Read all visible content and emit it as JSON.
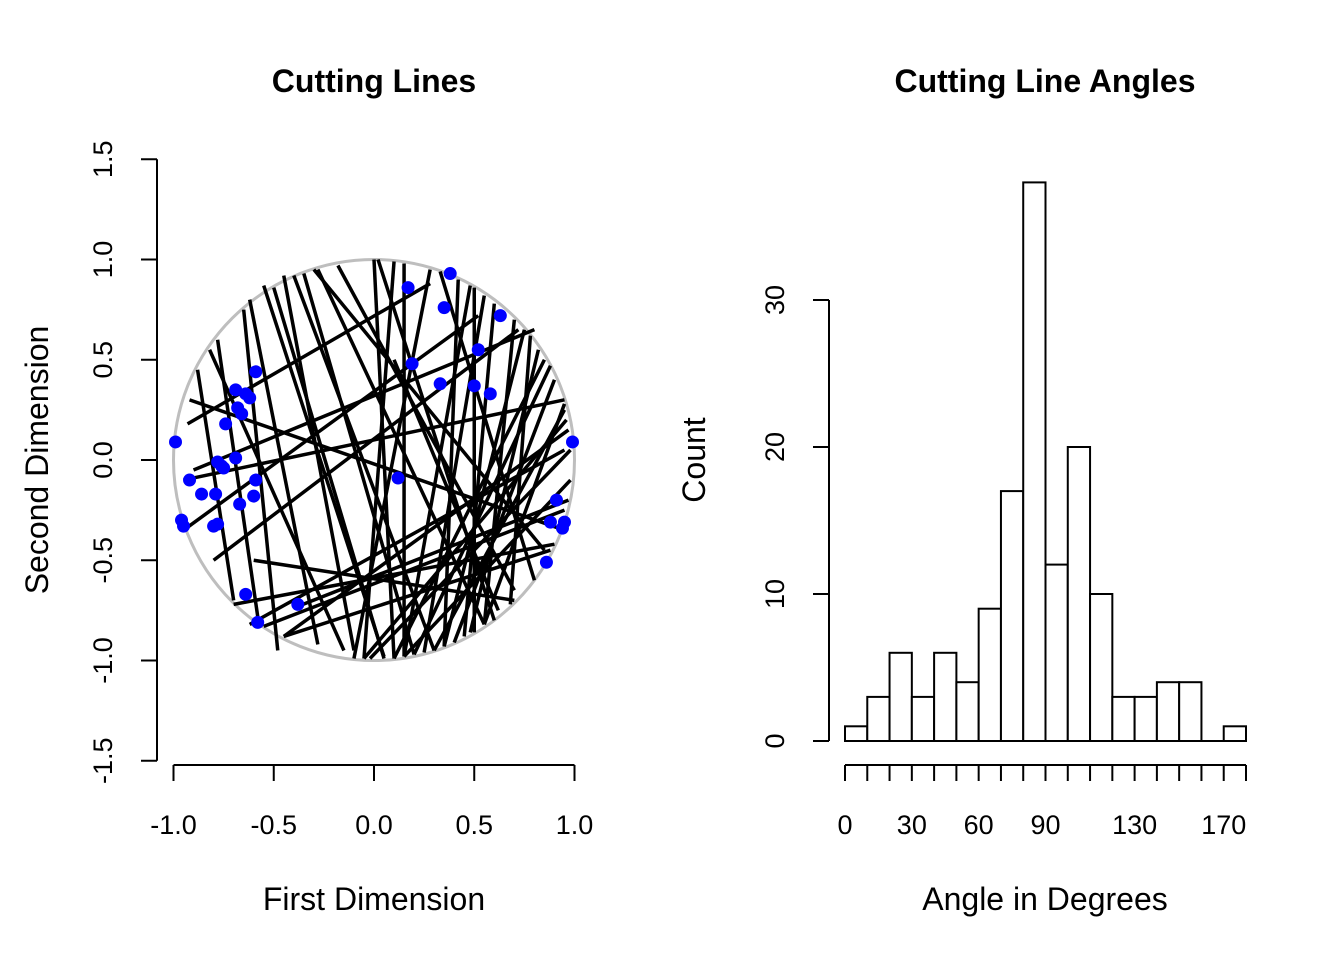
{
  "chart_data": [
    {
      "type": "scatter",
      "title": "Cutting Lines",
      "xlabel": "First Dimension",
      "ylabel": "Second Dimension",
      "xlim": [
        -1.0,
        1.0
      ],
      "ylim": [
        -1.5,
        1.5
      ],
      "xticks": [
        "-1.0",
        "-0.5",
        "0.0",
        "0.5",
        "1.0"
      ],
      "yticks": [
        "-1.5",
        "-1.0",
        "-0.5",
        "0.0",
        "0.5",
        "1.0",
        "1.5"
      ],
      "colors": {
        "points": "#0000ff",
        "lines": "#000000",
        "circle": "#bebebe"
      },
      "unit_circle": {
        "center": [
          0,
          0
        ],
        "radius": 1.0
      },
      "points": [
        [
          -0.99,
          0.09
        ],
        [
          -0.96,
          -0.3
        ],
        [
          -0.95,
          -0.33
        ],
        [
          -0.92,
          -0.1
        ],
        [
          -0.86,
          -0.17
        ],
        [
          -0.8,
          -0.33
        ],
        [
          -0.78,
          -0.32
        ],
        [
          -0.79,
          -0.17
        ],
        [
          -0.78,
          -0.01
        ],
        [
          -0.76,
          -0.03
        ],
        [
          -0.75,
          -0.04
        ],
        [
          -0.74,
          0.18
        ],
        [
          -0.69,
          0.01
        ],
        [
          -0.69,
          0.35
        ],
        [
          -0.68,
          0.26
        ],
        [
          -0.66,
          0.23
        ],
        [
          -0.67,
          -0.22
        ],
        [
          -0.64,
          0.33
        ],
        [
          -0.62,
          0.31
        ],
        [
          -0.64,
          -0.67
        ],
        [
          -0.59,
          0.44
        ],
        [
          -0.58,
          -0.81
        ],
        [
          -0.59,
          -0.1
        ],
        [
          -0.6,
          -0.18
        ],
        [
          -0.38,
          -0.72
        ],
        [
          0.12,
          -0.09
        ],
        [
          0.17,
          0.86
        ],
        [
          0.19,
          0.48
        ],
        [
          0.33,
          0.38
        ],
        [
          0.35,
          0.76
        ],
        [
          0.38,
          0.93
        ],
        [
          0.5,
          0.37
        ],
        [
          0.52,
          0.55
        ],
        [
          0.58,
          0.33
        ],
        [
          0.63,
          0.72
        ],
        [
          0.86,
          -0.51
        ],
        [
          0.88,
          -0.31
        ],
        [
          0.91,
          -0.2
        ],
        [
          0.94,
          -0.34
        ],
        [
          0.95,
          -0.31
        ],
        [
          0.99,
          0.09
        ]
      ],
      "lines": [
        [
          -0.95,
          -0.35,
          0.52,
          0.72
        ],
        [
          -0.93,
          0.18,
          0.28,
          0.88
        ],
        [
          -0.65,
          0.75,
          -0.48,
          -0.95
        ],
        [
          -0.92,
          0.3,
          0.95,
          -0.35
        ],
        [
          -0.8,
          -0.5,
          0.72,
          0.65
        ],
        [
          -0.9,
          -0.05,
          0.8,
          0.65
        ],
        [
          -0.62,
          -0.82,
          0.95,
          0.05
        ],
        [
          -0.82,
          0.55,
          -0.15,
          -0.95
        ],
        [
          -0.55,
          0.87,
          0.05,
          -0.98
        ],
        [
          -0.45,
          0.92,
          -0.1,
          -0.95
        ],
        [
          -0.4,
          0.92,
          0.3,
          -0.95
        ],
        [
          -0.28,
          0.95,
          0.55,
          -0.82
        ],
        [
          -0.35,
          0.93,
          0.2,
          -0.97
        ],
        [
          -0.18,
          0.97,
          0.7,
          -0.65
        ],
        [
          -0.3,
          0.95,
          0.85,
          -0.45
        ],
        [
          -0.62,
          0.8,
          -0.28,
          -0.92
        ],
        [
          -0.78,
          0.6,
          -0.58,
          -0.78
        ],
        [
          -0.88,
          0.45,
          -0.7,
          -0.7
        ],
        [
          0.0,
          1.0,
          0.1,
          -0.99
        ],
        [
          0.02,
          1.0,
          0.6,
          -0.8
        ],
        [
          0.1,
          0.99,
          -0.05,
          -0.99
        ],
        [
          0.15,
          0.98,
          0.15,
          -0.98
        ],
        [
          0.28,
          0.95,
          -0.1,
          -0.99
        ],
        [
          0.42,
          0.9,
          0.35,
          -0.93
        ],
        [
          0.55,
          0.82,
          0.25,
          -0.96
        ],
        [
          0.6,
          0.78,
          0.45,
          -0.88
        ],
        [
          0.7,
          0.7,
          0.55,
          -0.82
        ],
        [
          0.78,
          0.62,
          0.68,
          -0.72
        ],
        [
          0.82,
          0.55,
          0.48,
          -0.86
        ],
        [
          0.9,
          0.4,
          0.4,
          -0.91
        ],
        [
          0.95,
          0.25,
          0.3,
          -0.95
        ],
        [
          0.96,
          0.2,
          -0.05,
          -0.99
        ],
        [
          0.97,
          0.15,
          -0.45,
          -0.88
        ],
        [
          0.98,
          0.05,
          -0.02,
          -0.99
        ],
        [
          0.98,
          -0.1,
          0.15,
          -0.98
        ],
        [
          0.95,
          0.28,
          0.55,
          -0.82
        ],
        [
          0.85,
          0.5,
          0.1,
          -0.99
        ],
        [
          0.75,
          0.65,
          0.35,
          -0.93
        ],
        [
          -0.7,
          -0.72,
          0.9,
          -0.42
        ],
        [
          -0.45,
          -0.88,
          0.88,
          -0.45
        ],
        [
          -0.38,
          -0.73,
          0.97,
          -0.2
        ],
        [
          -0.55,
          -0.83,
          0.95,
          -0.25
        ],
        [
          -0.95,
          -0.1,
          0.95,
          0.3
        ],
        [
          0.48,
          0.87,
          0.15,
          -0.98
        ],
        [
          0.33,
          0.94,
          0.8,
          -0.6
        ],
        [
          0.1,
          0.5,
          0.62,
          -0.75
        ],
        [
          0.5,
          0.86,
          0.5,
          -0.86
        ],
        [
          0.88,
          0.47,
          0.2,
          -0.97
        ],
        [
          -0.5,
          0.86,
          0.05,
          -0.99
        ],
        [
          -0.6,
          -0.5,
          0.7,
          -0.7
        ]
      ]
    },
    {
      "type": "bar",
      "title": "Cutting Line Angles",
      "xlabel": "Angle in Degrees",
      "ylabel": "Count",
      "xlim": [
        0,
        180
      ],
      "ylim": [
        0,
        38
      ],
      "bin_width": 10,
      "bin_edges": [
        0,
        10,
        20,
        30,
        40,
        50,
        60,
        70,
        80,
        90,
        100,
        110,
        120,
        130,
        140,
        150,
        160,
        170,
        180
      ],
      "values": [
        1,
        3,
        6,
        3,
        6,
        4,
        9,
        17,
        38,
        12,
        20,
        10,
        3,
        3,
        4,
        4,
        0,
        1
      ],
      "xticks": [
        "0",
        "30",
        "60",
        "90",
        "130",
        "170"
      ],
      "xtick_values": [
        0,
        30,
        60,
        90,
        130,
        170
      ],
      "yticks": [
        "0",
        "10",
        "20",
        "30"
      ],
      "ytick_values": [
        0,
        10,
        20,
        30
      ],
      "colors": {
        "bar_fill": "#ffffff",
        "bar_stroke": "#000000"
      }
    }
  ]
}
